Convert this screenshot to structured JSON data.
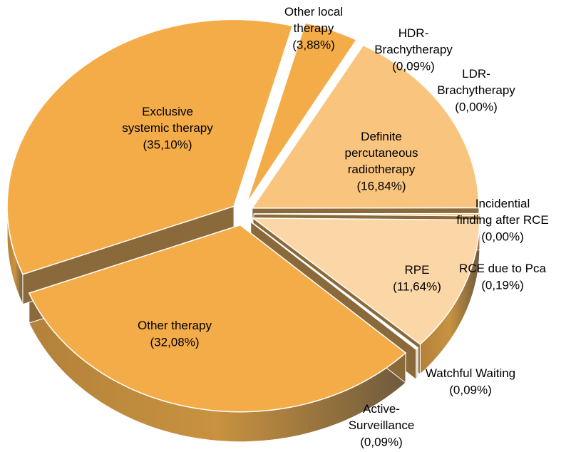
{
  "chart_data": {
    "type": "pie3d",
    "categories": [
      "Other local\ntherapy",
      "HDR-\nBrachytherapy",
      "LDR-\nBrachytherapy",
      "Definite\npercutaneous\nradiotherapy",
      "Incidential\nfinding after RCE",
      "RCE due to  Pca",
      "RPE",
      "Watchful Waiting",
      "Active-\nSurveillance",
      "Other therapy",
      "Exclusive\nsystemic therapy"
    ],
    "values": [
      3.88,
      0.09,
      0.0,
      16.84,
      0.0,
      0.19,
      11.64,
      0.09,
      0.09,
      32.08,
      35.1
    ],
    "value_labels": [
      "(3,88%)",
      "(0,09%)",
      "(0,00%)",
      "(16,84%)",
      "(0,00%)",
      "(0,19%)",
      "(11,64%)",
      "(0,09%)",
      "(0,09%)",
      "(32,08%)",
      "(35,10%)"
    ],
    "colors": [
      "#f4ac48",
      "#f4ac48",
      "#f4ac48",
      "#f8c47e",
      "#f4ac48",
      "#f4ac48",
      "#fbd6a6",
      "#f4ac48",
      "#f4ac48",
      "#f4ac48",
      "#f4ac48"
    ]
  }
}
